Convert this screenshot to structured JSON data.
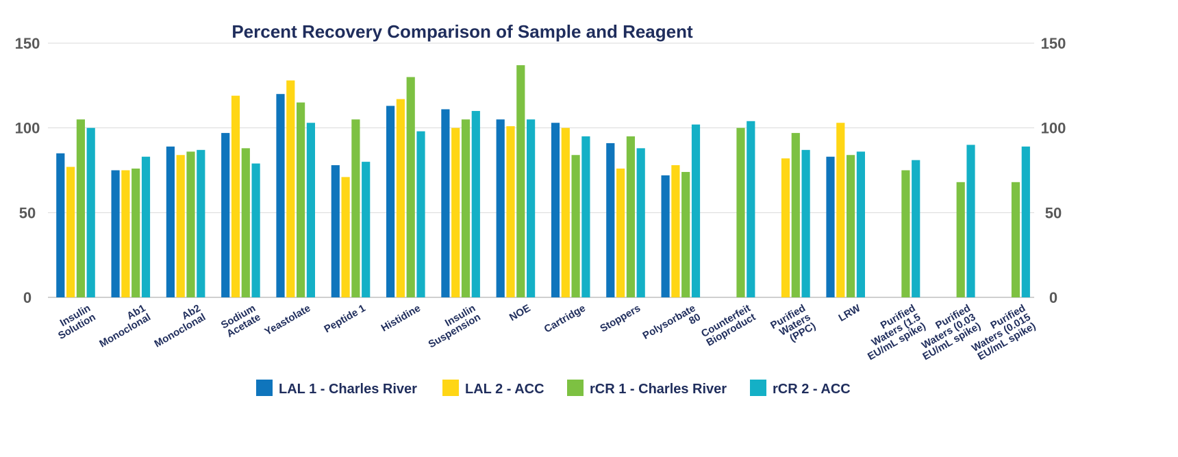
{
  "chart_data": {
    "type": "bar",
    "title": "Percent Recovery Comparison of Sample and Reagent",
    "xlabel": "",
    "ylabel": "",
    "ylim": [
      0,
      150
    ],
    "yticks": [
      "0",
      "50",
      "100",
      "150"
    ],
    "grid": true,
    "legend_position": "bottom",
    "categories": [
      [
        "Insulin",
        "Solution"
      ],
      [
        "Ab1",
        "Monoclonal"
      ],
      [
        "Ab2",
        "Monoclonal"
      ],
      [
        "Sodium",
        "Acetate"
      ],
      [
        "Yeastolate"
      ],
      [
        "Peptide 1"
      ],
      [
        "Histidine"
      ],
      [
        "Insulin",
        "Suspension"
      ],
      [
        "NOE"
      ],
      [
        "Cartridge"
      ],
      [
        "Stoppers"
      ],
      [
        "Polysorbate",
        "80"
      ],
      [
        "Counterfeit",
        "Bioproduct"
      ],
      [
        "Purified",
        "Waters",
        "(PPC)"
      ],
      [
        "LRW"
      ],
      [
        "Purified",
        "Waters (1.5",
        "EU/mL spike)"
      ],
      [
        "Purified",
        "Waters (0.03",
        "EU/mL spike)"
      ],
      [
        "Purified",
        "Waters (0.015",
        "EU/mL spike)"
      ]
    ],
    "series": [
      {
        "name": "LAL 1 - Charles River",
        "color": "#0f75bc",
        "values": [
          85,
          75,
          89,
          97,
          120,
          78,
          113,
          111,
          105,
          103,
          91,
          72,
          null,
          null,
          83,
          null,
          null,
          null
        ]
      },
      {
        "name": "LAL 2 - ACC",
        "color": "#ffd615",
        "values": [
          77,
          75,
          84,
          119,
          128,
          71,
          117,
          100,
          101,
          100,
          76,
          78,
          null,
          82,
          103,
          null,
          null,
          null
        ]
      },
      {
        "name": "rCR 1 - Charles River",
        "color": "#7dc142",
        "values": [
          105,
          76,
          86,
          88,
          115,
          105,
          130,
          105,
          137,
          84,
          95,
          74,
          100,
          97,
          84,
          75,
          68,
          68
        ]
      },
      {
        "name": "rCR 2 - ACC",
        "color": "#14b0c6",
        "values": [
          100,
          83,
          87,
          79,
          103,
          80,
          98,
          110,
          105,
          95,
          88,
          102,
          104,
          87,
          86,
          81,
          90,
          89
        ]
      }
    ]
  }
}
